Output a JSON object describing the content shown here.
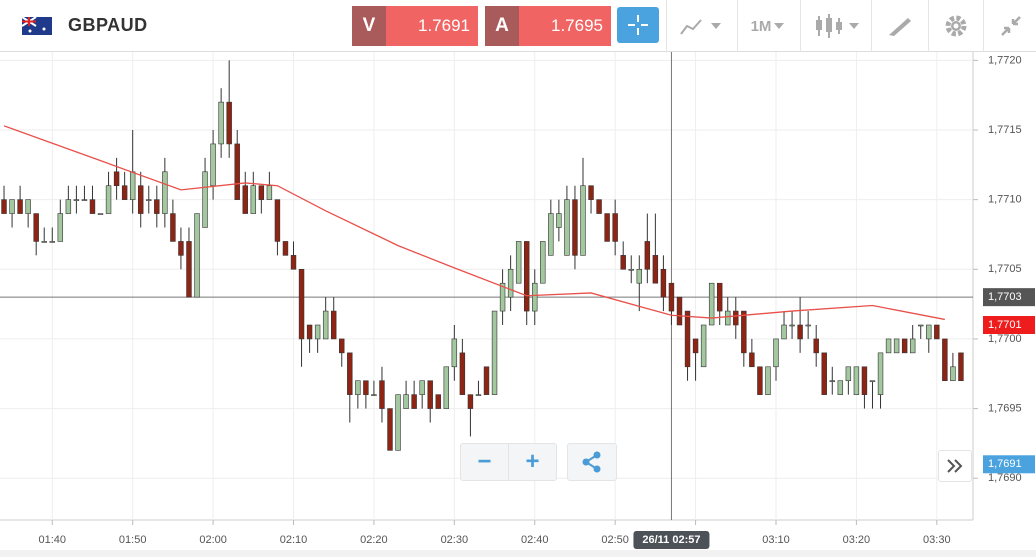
{
  "header": {
    "symbol": "GBPAUD",
    "sell_label": "V",
    "sell_price": "1.7691",
    "buy_label": "A",
    "buy_price": "1.7695",
    "timeframe": "1M"
  },
  "chart_data": {
    "type": "candlestick",
    "up_color": "#a3c79e",
    "down_color": "#8e2414",
    "outline": "#333",
    "grid": true,
    "xlim": [
      93.5,
      214.5
    ],
    "ylim": [
      1.7687,
      1.77206
    ],
    "xticks": [
      {
        "value": 100,
        "label": "01:40"
      },
      {
        "value": 110,
        "label": "01:50"
      },
      {
        "value": 120,
        "label": "02:00"
      },
      {
        "value": 130,
        "label": "02:10"
      },
      {
        "value": 140,
        "label": "02:20"
      },
      {
        "value": 150,
        "label": "02:30"
      },
      {
        "value": 160,
        "label": "02:40"
      },
      {
        "value": 170,
        "label": "02:50"
      },
      {
        "value": 180,
        "label": "03:00"
      },
      {
        "value": 190,
        "label": "03:10"
      },
      {
        "value": 200,
        "label": "03:20"
      },
      {
        "value": 210,
        "label": "03:30"
      }
    ],
    "yticks": [
      {
        "value": 1.769,
        "label": "1,7690"
      },
      {
        "value": 1.7695,
        "label": "1,7695"
      },
      {
        "value": 1.77,
        "label": "1,7700"
      },
      {
        "value": 1.7705,
        "label": "1,7705"
      },
      {
        "value": 1.771,
        "label": "1,7710"
      },
      {
        "value": 1.7715,
        "label": "1,7715"
      },
      {
        "value": 1.772,
        "label": "1,7720"
      }
    ],
    "x": [
      94,
      95,
      96,
      97,
      98,
      99,
      100,
      101,
      102,
      103,
      104,
      105,
      106,
      107,
      108,
      109,
      110,
      111,
      112,
      113,
      114,
      115,
      116,
      117,
      118,
      119,
      120,
      121,
      122,
      123,
      124,
      125,
      126,
      127,
      128,
      129,
      130,
      131,
      132,
      133,
      134,
      135,
      136,
      137,
      138,
      139,
      140,
      141,
      142,
      143,
      144,
      145,
      146,
      147,
      148,
      149,
      150,
      151,
      152,
      153,
      154,
      155,
      156,
      157,
      158,
      159,
      160,
      161,
      162,
      163,
      164,
      165,
      166,
      167,
      168,
      169,
      170,
      171,
      172,
      173,
      174,
      175,
      176,
      177,
      178,
      179,
      180,
      181,
      182,
      183,
      184,
      185,
      186,
      187,
      188,
      189,
      190,
      191,
      192,
      193,
      194,
      195,
      196,
      197,
      198,
      199,
      200,
      201,
      202,
      203,
      204,
      205,
      206,
      207,
      208,
      209,
      210,
      211,
      212,
      213
    ],
    "candles": [
      [
        1.771,
        1.7711,
        1.7709,
        1.7709
      ],
      [
        1.7709,
        1.771,
        1.7708,
        1.771
      ],
      [
        1.771,
        1.7711,
        1.7709,
        1.7709
      ],
      [
        1.7709,
        1.771,
        1.7708,
        1.771
      ],
      [
        1.7709,
        1.7709,
        1.7706,
        1.7707
      ],
      [
        1.7707,
        1.7708,
        1.7707,
        1.7707
      ],
      [
        1.7707,
        1.7708,
        1.7707,
        1.7707
      ],
      [
        1.7707,
        1.771,
        1.7707,
        1.7709
      ],
      [
        1.7709,
        1.7711,
        1.7709,
        1.771
      ],
      [
        1.771,
        1.7711,
        1.7709,
        1.771
      ],
      [
        1.771,
        1.7711,
        1.771,
        1.771
      ],
      [
        1.771,
        1.7711,
        1.7709,
        1.7709
      ],
      [
        1.7709,
        1.7709,
        1.7709,
        1.7709
      ],
      [
        1.7709,
        1.7712,
        1.7709,
        1.7711
      ],
      [
        1.7712,
        1.7713,
        1.771,
        1.7711
      ],
      [
        1.7711,
        1.7712,
        1.771,
        1.771
      ],
      [
        1.771,
        1.7715,
        1.7709,
        1.7712
      ],
      [
        1.7711,
        1.7712,
        1.7708,
        1.7709
      ],
      [
        1.771,
        1.7711,
        1.7709,
        1.771
      ],
      [
        1.771,
        1.7711,
        1.7708,
        1.7709
      ],
      [
        1.7709,
        1.7713,
        1.7708,
        1.7712
      ],
      [
        1.7709,
        1.771,
        1.7707,
        1.7707
      ],
      [
        1.7707,
        1.7708,
        1.7705,
        1.7706
      ],
      [
        1.7707,
        1.7708,
        1.7703,
        1.7703
      ],
      [
        1.7703,
        1.7709,
        1.7703,
        1.7709
      ],
      [
        1.7708,
        1.7713,
        1.7708,
        1.7712
      ],
      [
        1.7711,
        1.7715,
        1.771,
        1.7714
      ],
      [
        1.7714,
        1.7718,
        1.7713,
        1.7717
      ],
      [
        1.7717,
        1.772,
        1.7713,
        1.7714
      ],
      [
        1.7714,
        1.7715,
        1.771,
        1.771
      ],
      [
        1.7711,
        1.7712,
        1.7709,
        1.7709
      ],
      [
        1.7709,
        1.7712,
        1.7709,
        1.7711
      ],
      [
        1.7711,
        1.7711,
        1.7709,
        1.771
      ],
      [
        1.771,
        1.7712,
        1.771,
        1.7711
      ],
      [
        1.771,
        1.771,
        1.7706,
        1.7707
      ],
      [
        1.7707,
        1.7707,
        1.7706,
        1.7706
      ],
      [
        1.7706,
        1.7707,
        1.7705,
        1.7705
      ],
      [
        1.7705,
        1.7705,
        1.7698,
        1.77
      ],
      [
        1.7701,
        1.7701,
        1.7699,
        1.77
      ],
      [
        1.77,
        1.7701,
        1.7699,
        1.7701
      ],
      [
        1.77,
        1.7703,
        1.77,
        1.7702
      ],
      [
        1.7702,
        1.7703,
        1.77,
        1.77
      ],
      [
        1.77,
        1.77,
        1.7698,
        1.7699
      ],
      [
        1.7699,
        1.7699,
        1.7694,
        1.7696
      ],
      [
        1.7696,
        1.7697,
        1.7695,
        1.7697
      ],
      [
        1.7697,
        1.7697,
        1.7695,
        1.7696
      ],
      [
        1.7696,
        1.7697,
        1.7696,
        1.7696
      ],
      [
        1.7697,
        1.7698,
        1.7694,
        1.7695
      ],
      [
        1.7695,
        1.7695,
        1.7692,
        1.7692
      ],
      [
        1.7692,
        1.7696,
        1.7692,
        1.7696
      ],
      [
        1.7695,
        1.7697,
        1.7695,
        1.7696
      ],
      [
        1.7696,
        1.7697,
        1.7695,
        1.7695
      ],
      [
        1.7696,
        1.7697,
        1.7695,
        1.7697
      ],
      [
        1.7697,
        1.7697,
        1.7694,
        1.7695
      ],
      [
        1.7696,
        1.7696,
        1.7695,
        1.7695
      ],
      [
        1.7695,
        1.7698,
        1.7695,
        1.7698
      ],
      [
        1.7698,
        1.7701,
        1.7697,
        1.77
      ],
      [
        1.7699,
        1.77,
        1.7696,
        1.7696
      ],
      [
        1.7696,
        1.7696,
        1.7693,
        1.7695
      ],
      [
        1.7696,
        1.7697,
        1.7696,
        1.7696
      ],
      [
        1.7698,
        1.7698,
        1.7696,
        1.7696
      ],
      [
        1.7696,
        1.7702,
        1.7696,
        1.7702
      ],
      [
        1.7702,
        1.7705,
        1.7701,
        1.7704
      ],
      [
        1.7703,
        1.7706,
        1.7702,
        1.7705
      ],
      [
        1.7704,
        1.7707,
        1.7704,
        1.7707
      ],
      [
        1.7707,
        1.7707,
        1.7701,
        1.7702
      ],
      [
        1.7702,
        1.7705,
        1.7701,
        1.7704
      ],
      [
        1.7704,
        1.7707,
        1.7704,
        1.7707
      ],
      [
        1.7706,
        1.771,
        1.7706,
        1.7709
      ],
      [
        1.7708,
        1.771,
        1.7707,
        1.7709
      ],
      [
        1.7706,
        1.7711,
        1.7706,
        1.771
      ],
      [
        1.771,
        1.7711,
        1.7705,
        1.7706
      ],
      [
        1.7706,
        1.7713,
        1.7706,
        1.7711
      ],
      [
        1.7711,
        1.7711,
        1.7709,
        1.771
      ],
      [
        1.771,
        1.771,
        1.7709,
        1.7709
      ],
      [
        1.7709,
        1.7709,
        1.7707,
        1.7707
      ],
      [
        1.7709,
        1.771,
        1.7706,
        1.7707
      ],
      [
        1.7706,
        1.7707,
        1.7705,
        1.7705
      ],
      [
        1.7705,
        1.7706,
        1.7704,
        1.7705
      ],
      [
        1.7704,
        1.7706,
        1.7702,
        1.7705
      ],
      [
        1.7707,
        1.7709,
        1.7704,
        1.7705
      ],
      [
        1.7706,
        1.7709,
        1.7704,
        1.7704
      ],
      [
        1.7705,
        1.7706,
        1.7702,
        1.7703
      ],
      [
        1.7704,
        1.7704,
        1.7701,
        1.7702
      ],
      [
        1.7703,
        1.7703,
        1.7701,
        1.7701
      ],
      [
        1.7702,
        1.7702,
        1.7697,
        1.7698
      ],
      [
        1.77,
        1.77,
        1.7697,
        1.7699
      ],
      [
        1.7698,
        1.7701,
        1.7698,
        1.7701
      ],
      [
        1.7701,
        1.7704,
        1.7701,
        1.7704
      ],
      [
        1.7704,
        1.7704,
        1.7701,
        1.7702
      ],
      [
        1.7701,
        1.7703,
        1.7701,
        1.7702
      ],
      [
        1.7702,
        1.7703,
        1.77,
        1.7701
      ],
      [
        1.7702,
        1.7702,
        1.7698,
        1.7699
      ],
      [
        1.7699,
        1.77,
        1.7698,
        1.7698
      ],
      [
        1.7698,
        1.7698,
        1.7696,
        1.7696
      ],
      [
        1.7696,
        1.7698,
        1.7696,
        1.7698
      ],
      [
        1.7698,
        1.77,
        1.7697,
        1.77
      ],
      [
        1.77,
        1.7702,
        1.77,
        1.7701
      ],
      [
        1.7701,
        1.7702,
        1.77,
        1.7701
      ],
      [
        1.7701,
        1.7703,
        1.7699,
        1.77
      ],
      [
        1.7701,
        1.7702,
        1.77,
        1.7701
      ],
      [
        1.77,
        1.7701,
        1.7698,
        1.7699
      ],
      [
        1.7699,
        1.7699,
        1.7696,
        1.7696
      ],
      [
        1.7697,
        1.7698,
        1.7696,
        1.7697
      ],
      [
        1.7696,
        1.7697,
        1.7696,
        1.7697
      ],
      [
        1.7697,
        1.7698,
        1.7696,
        1.7698
      ],
      [
        1.7696,
        1.7698,
        1.7696,
        1.7698
      ],
      [
        1.7698,
        1.7698,
        1.7695,
        1.7696
      ],
      [
        1.7697,
        1.7697,
        1.7695,
        1.7697
      ],
      [
        1.7696,
        1.7699,
        1.7695,
        1.7699
      ],
      [
        1.7699,
        1.77,
        1.7699,
        1.77
      ],
      [
        1.7699,
        1.77,
        1.7699,
        1.77
      ],
      [
        1.77,
        1.77,
        1.7699,
        1.7699
      ],
      [
        1.7699,
        1.7701,
        1.7699,
        1.77
      ],
      [
        1.7701,
        1.7701,
        1.77,
        1.7701
      ],
      [
        1.77,
        1.7701,
        1.7699,
        1.7701
      ],
      [
        1.7701,
        1.7701,
        1.77,
        1.77
      ],
      [
        1.77,
        1.77,
        1.7697,
        1.7697
      ],
      [
        1.7697,
        1.7699,
        1.7697,
        1.7698
      ],
      [
        1.7699,
        1.7699,
        1.7697,
        1.7697
      ]
    ],
    "ma": {
      "color": "#e8504a",
      "x": [
        94,
        106,
        116,
        124,
        128,
        134,
        143,
        150,
        159,
        167,
        177,
        182,
        192,
        202,
        211
      ],
      "values": [
        1.77153,
        1.77128,
        1.77107,
        1.77112,
        1.7711,
        1.77092,
        1.77067,
        1.77051,
        1.77031,
        1.77033,
        1.77017,
        1.77015,
        1.7702,
        1.77024,
        1.77014
      ]
    },
    "crosshair": {
      "x": 177,
      "y": 1.7703,
      "x_label": "26/11 02:57",
      "y_label": "1,7703"
    },
    "price_tags": [
      {
        "value": 1.7701,
        "label": "1,7701",
        "color": "#ee1c1c"
      },
      {
        "value": 1.7691,
        "label": "1,7691",
        "color": "#4aa3df"
      }
    ]
  }
}
